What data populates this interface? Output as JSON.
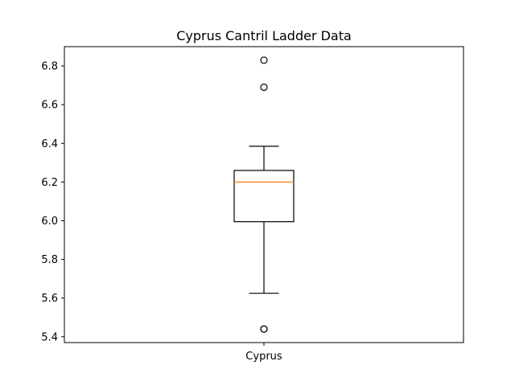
{
  "chart_data": {
    "type": "box",
    "title": "Cyprus Cantril Ladder Data",
    "xlabel": "",
    "ylabel": "",
    "categories": [
      "Cyprus"
    ],
    "ylim": [
      5.37,
      6.9
    ],
    "yticks": [
      "5.4",
      "5.6",
      "5.8",
      "6.0",
      "6.2",
      "6.4",
      "6.6",
      "6.8"
    ],
    "grid": false,
    "boxes": [
      {
        "name": "Cyprus",
        "whisker_low": 5.625,
        "q1": 5.995,
        "median": 6.2,
        "q3": 6.26,
        "whisker_high": 6.385,
        "outliers": [
          6.83,
          6.69,
          5.44,
          5.44
        ]
      }
    ],
    "colors": {
      "box": "#000000",
      "median": "#ff7f0e",
      "outlier": "#000000"
    }
  }
}
